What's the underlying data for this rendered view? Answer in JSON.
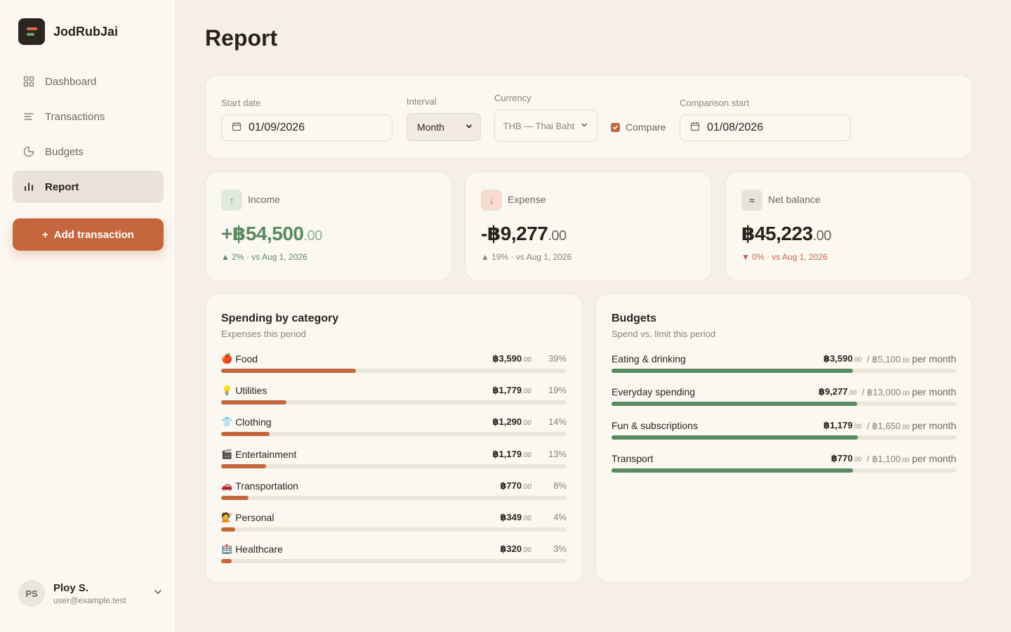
{
  "app": {
    "name": "JodRubJai"
  },
  "sidebar": {
    "items": [
      {
        "label": "Dashboard",
        "icon": "grid-icon"
      },
      {
        "label": "Transactions",
        "icon": "list-icon"
      },
      {
        "label": "Budgets",
        "icon": "pie-icon"
      },
      {
        "label": "Report",
        "icon": "bar-chart-icon"
      }
    ],
    "add_button": "Add transaction",
    "user": {
      "initials": "PS",
      "name": "Ploy S.",
      "email": "user@example.test"
    }
  },
  "page": {
    "title": "Report"
  },
  "filters": {
    "start_date_label": "Start date",
    "start_date": "01/09/2026",
    "interval_label": "Interval",
    "interval": "Month",
    "currency_label": "Currency",
    "currency": "THB — Thai Baht",
    "compare_label": "Compare",
    "compare_checked": true,
    "comparison_label": "Comparison start",
    "comparison_date": "01/08/2026"
  },
  "stats": {
    "income": {
      "label": "Income",
      "badge": "↑",
      "value": "+฿54,500",
      "cents": ".00",
      "delta": "▲ 2% · vs Aug 1, 2026",
      "color": "#5a8a60"
    },
    "expense": {
      "label": "Expense",
      "badge": "↓",
      "value": "-฿9,277",
      "cents": ".00",
      "delta": "▲ 19% · vs Aug 1, 2026",
      "color": "#2a211c"
    },
    "net": {
      "label": "Net balance",
      "badge": "≈",
      "value": "฿45,223",
      "cents": ".00",
      "delta": "▼ 0% · vs Aug 1, 2026",
      "color": "#2a211c"
    }
  },
  "spending": {
    "title": "Spending by category",
    "subtitle": "Expenses this period",
    "rows": [
      {
        "emoji": "🍎",
        "name": "Food",
        "amount": "฿3,590",
        "cents": ".00",
        "pct": "39%",
        "fraction": 0.39
      },
      {
        "emoji": "💡",
        "name": "Utilities",
        "amount": "฿1,779",
        "cents": ".00",
        "pct": "19%",
        "fraction": 0.19
      },
      {
        "emoji": "👕",
        "name": "Clothing",
        "amount": "฿1,290",
        "cents": ".00",
        "pct": "14%",
        "fraction": 0.14
      },
      {
        "emoji": "🎬",
        "name": "Entertainment",
        "amount": "฿1,179",
        "cents": ".00",
        "pct": "13%",
        "fraction": 0.13
      },
      {
        "emoji": "🚗",
        "name": "Transportation",
        "amount": "฿770",
        "cents": ".00",
        "pct": "8%",
        "fraction": 0.08
      },
      {
        "emoji": "💇",
        "name": "Personal",
        "amount": "฿349",
        "cents": ".00",
        "pct": "4%",
        "fraction": 0.04
      },
      {
        "emoji": "🏥",
        "name": "Healthcare",
        "amount": "฿320",
        "cents": ".00",
        "pct": "3%",
        "fraction": 0.03
      }
    ]
  },
  "budgets": {
    "title": "Budgets",
    "subtitle": "Spend vs. limit this period",
    "per": "per month",
    "rows": [
      {
        "name": "Eating & drinking",
        "amount": "฿3,590",
        "cents": ".00",
        "limit": "/ ฿5,100",
        "limit_cents": ".00",
        "fraction": 0.7
      },
      {
        "name": "Everyday spending",
        "amount": "฿9,277",
        "cents": ".00",
        "limit": "/ ฿13,000",
        "limit_cents": ".00",
        "fraction": 0.713
      },
      {
        "name": "Fun & subscriptions",
        "amount": "฿1,179",
        "cents": ".00",
        "limit": "/ ฿1,650",
        "limit_cents": ".00",
        "fraction": 0.715
      },
      {
        "name": "Transport",
        "amount": "฿770",
        "cents": ".00",
        "limit": "/ ฿1,100",
        "limit_cents": ".00",
        "fraction": 0.7
      }
    ]
  },
  "colors": {
    "accent": "#c4673f",
    "green": "#5a8a60",
    "red": "#c4673f"
  }
}
